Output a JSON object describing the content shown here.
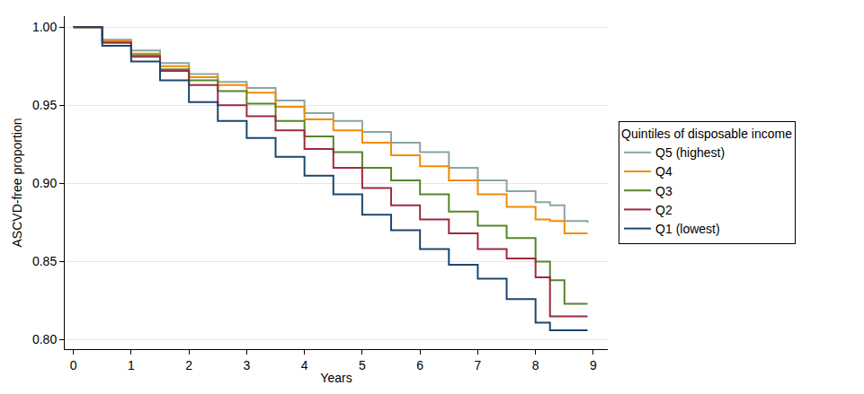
{
  "chart_data": {
    "type": "line",
    "line_style": "step",
    "x_label": "Years",
    "y_label": "ASCVD-free proportion",
    "legend_title": "Quintiles of disposable income",
    "legend": "right",
    "grid": "y",
    "xlim": [
      -0.15,
      9.25
    ],
    "xticks": [
      0,
      1,
      2,
      3,
      4,
      5,
      6,
      7,
      8,
      9
    ],
    "ylim": [
      0.794,
      1.007
    ],
    "yticks": [
      {
        "value": 0.8,
        "label": "0.80"
      },
      0.85,
      {
        "value": 0.9,
        "label": "0.90"
      },
      0.95,
      {
        "value": 1,
        "label": "1.00"
      }
    ],
    "x": [
      0,
      0.5,
      1,
      1.5,
      2,
      2.5,
      3,
      3.5,
      4,
      4.5,
      5,
      5.5,
      6,
      6.5,
      7,
      7.5,
      8,
      8.25,
      8.5,
      8.9
    ],
    "series": [
      {
        "name": "Q5 (highest)",
        "color": "#8aa5a5",
        "values": [
          1.0,
          0.992,
          0.985,
          0.977,
          0.97,
          0.965,
          0.961,
          0.953,
          0.945,
          0.94,
          0.933,
          0.926,
          0.92,
          0.91,
          0.902,
          0.895,
          0.888,
          0.886,
          0.876,
          0.875
        ]
      },
      {
        "name": "Q4",
        "color": "#f28c00",
        "values": [
          1.0,
          0.991,
          0.983,
          0.975,
          0.968,
          0.963,
          0.958,
          0.949,
          0.941,
          0.934,
          0.926,
          0.918,
          0.911,
          0.902,
          0.893,
          0.885,
          0.877,
          0.876,
          0.868,
          0.868
        ]
      },
      {
        "name": "Q3",
        "color": "#55862a",
        "values": [
          1.0,
          0.99,
          0.982,
          0.973,
          0.966,
          0.959,
          0.951,
          0.94,
          0.93,
          0.92,
          0.91,
          0.902,
          0.893,
          0.882,
          0.873,
          0.865,
          0.85,
          0.838,
          0.823,
          0.823
        ]
      },
      {
        "name": "Q2",
        "color": "#9e2a3f",
        "values": [
          1.0,
          0.99,
          0.981,
          0.972,
          0.963,
          0.95,
          0.943,
          0.934,
          0.922,
          0.91,
          0.897,
          0.886,
          0.877,
          0.868,
          0.858,
          0.852,
          0.84,
          0.815,
          0.815,
          0.815
        ]
      },
      {
        "name": "Q1 (lowest)",
        "color": "#1a476f",
        "values": [
          1.0,
          0.988,
          0.978,
          0.966,
          0.952,
          0.94,
          0.929,
          0.917,
          0.905,
          0.893,
          0.88,
          0.87,
          0.858,
          0.848,
          0.839,
          0.826,
          0.811,
          0.806,
          0.806,
          0.806
        ]
      }
    ]
  }
}
